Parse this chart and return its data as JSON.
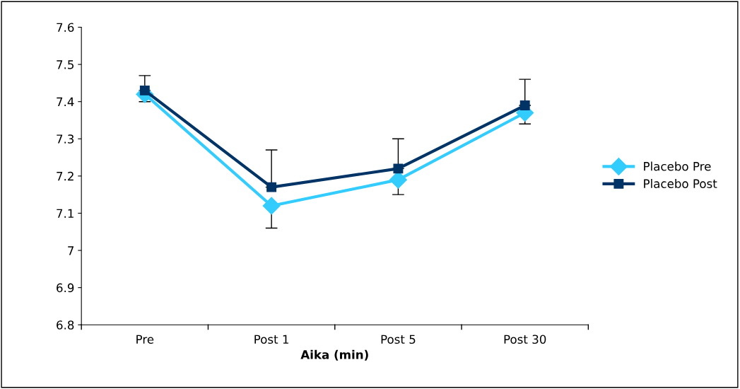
{
  "chart_data": {
    "type": "line",
    "xlabel": "Aika (min)",
    "categories": [
      "Pre",
      "Post 1",
      "Post 5",
      "Post 30"
    ],
    "series": [
      {
        "name": "Placebo Pre",
        "color": "#33ccff",
        "marker": "diamond",
        "values": [
          7.42,
          7.12,
          7.19,
          7.37
        ],
        "errors": [
          [
            7.4,
            7.42
          ],
          [
            7.06,
            7.12
          ],
          [
            7.15,
            7.19
          ],
          [
            7.34,
            7.37
          ]
        ]
      },
      {
        "name": "Placebo Post",
        "color": "#003366",
        "marker": "square",
        "values": [
          7.43,
          7.17,
          7.22,
          7.39
        ],
        "errors": [
          [
            7.43,
            7.47
          ],
          [
            7.17,
            7.27
          ],
          [
            7.22,
            7.3
          ],
          [
            7.39,
            7.46
          ]
        ]
      }
    ],
    "ylim": [
      6.8,
      7.6
    ],
    "yticks": [
      6.8,
      6.9,
      7,
      7.1,
      7.2,
      7.3,
      7.4,
      7.5,
      7.6
    ],
    "grid": false,
    "legend": "right",
    "line_style": "solid"
  }
}
